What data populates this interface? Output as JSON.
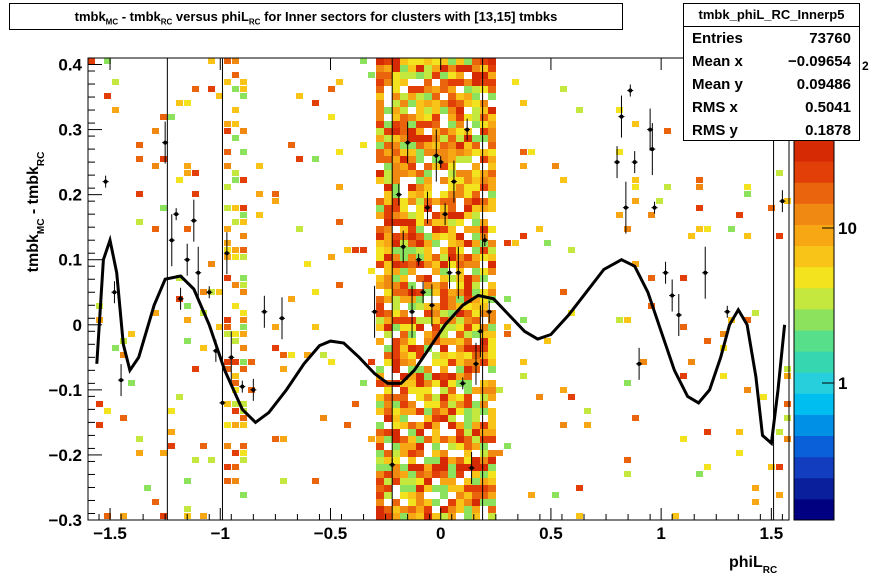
{
  "title": {
    "p1": "tmbk",
    "s1": "MC",
    "p2": " - tmbk",
    "s2": "RC",
    "p3": " versus phiL",
    "s3": "RC",
    "p4": " for Inner sectors for clusters with [13,15] tmbks"
  },
  "stats": {
    "name": "tmbk_phiL_RC_Innerp5",
    "rows": [
      {
        "key": "Entries",
        "value": "73760"
      },
      {
        "key": "Mean x",
        "value": "−0.09654"
      },
      {
        "key": "Mean y",
        "value": "0.09486"
      },
      {
        "key": "RMS x",
        "value": "0.5041"
      },
      {
        "key": "RMS y",
        "value": "0.1878"
      }
    ]
  },
  "axes": {
    "xlabel_main": "phiL",
    "xlabel_sub": "RC",
    "ylabel_a": "tmbk",
    "ylabel_a_sub": "MC",
    "ylabel_b": " - tmbk",
    "ylabel_b_sub": "RC",
    "xticks": [
      "−1.5",
      "−1",
      "−0.5",
      "0",
      "0.5",
      "1",
      "1.5"
    ],
    "yticks": [
      "−0.3",
      "−0.2",
      "−0.1",
      "0",
      "0.1",
      "0.2",
      "0.3",
      "0.4"
    ],
    "zticks": [
      "1",
      "10"
    ],
    "zcorner": "2"
  },
  "chart_data": {
    "type": "heatmap",
    "xlim": [
      -1.6,
      1.58
    ],
    "ylim": [
      -0.3,
      0.41
    ],
    "zscale": "log",
    "palette": [
      "#000080",
      "#0a1f9c",
      "#123dbe",
      "#0a60d8",
      "#0091e6",
      "#00bff0",
      "#27cfdc",
      "#36d6b0",
      "#57df8a",
      "#8ce25c",
      "#c4e83d",
      "#f2e31e",
      "#f9c418",
      "#f7a714",
      "#f08911",
      "#e9640c",
      "#e23e08",
      "#d62a05"
    ],
    "bands": [
      {
        "x0": -0.32,
        "x1": 0.25,
        "y0": -0.3,
        "y1": 0.41,
        "density": 0.85
      },
      {
        "x0": -1.0,
        "x1": -0.88,
        "y0": -0.26,
        "y1": 0.41,
        "density": 0.4
      }
    ],
    "profile_curve": [
      [
        -1.56,
        -0.06
      ],
      [
        -1.53,
        0.1
      ],
      [
        -1.5,
        0.13
      ],
      [
        -1.47,
        0.08
      ],
      [
        -1.44,
        -0.03
      ],
      [
        -1.41,
        -0.07
      ],
      [
        -1.37,
        -0.05
      ],
      [
        -1.3,
        0.03
      ],
      [
        -1.25,
        0.07
      ],
      [
        -1.18,
        0.075
      ],
      [
        -1.12,
        0.055
      ],
      [
        -1.05,
        0.0
      ],
      [
        -0.98,
        -0.07
      ],
      [
        -0.9,
        -0.13
      ],
      [
        -0.84,
        -0.15
      ],
      [
        -0.78,
        -0.135
      ],
      [
        -0.7,
        -0.1
      ],
      [
        -0.62,
        -0.06
      ],
      [
        -0.55,
        -0.032
      ],
      [
        -0.5,
        -0.025
      ],
      [
        -0.44,
        -0.028
      ],
      [
        -0.37,
        -0.05
      ],
      [
        -0.3,
        -0.075
      ],
      [
        -0.24,
        -0.09
      ],
      [
        -0.18,
        -0.09
      ],
      [
        -0.12,
        -0.07
      ],
      [
        -0.05,
        -0.035
      ],
      [
        0.02,
        0.0
      ],
      [
        0.1,
        0.03
      ],
      [
        0.17,
        0.045
      ],
      [
        0.24,
        0.04
      ],
      [
        0.31,
        0.015
      ],
      [
        0.38,
        -0.01
      ],
      [
        0.44,
        -0.022
      ],
      [
        0.5,
        -0.015
      ],
      [
        0.58,
        0.015
      ],
      [
        0.66,
        0.05
      ],
      [
        0.74,
        0.085
      ],
      [
        0.82,
        0.1
      ],
      [
        0.88,
        0.09
      ],
      [
        0.94,
        0.05
      ],
      [
        1.0,
        -0.01
      ],
      [
        1.06,
        -0.07
      ],
      [
        1.12,
        -0.11
      ],
      [
        1.17,
        -0.12
      ],
      [
        1.22,
        -0.1
      ],
      [
        1.27,
        -0.05
      ],
      [
        1.31,
        0.0
      ],
      [
        1.35,
        0.023
      ],
      [
        1.39,
        0.0
      ],
      [
        1.43,
        -0.08
      ],
      [
        1.46,
        -0.17
      ],
      [
        1.5,
        -0.182
      ],
      [
        1.53,
        -0.1
      ],
      [
        1.56,
        0.0
      ]
    ],
    "profile_points": [
      [
        -1.52,
        0.22
      ],
      [
        -1.48,
        0.05
      ],
      [
        -1.45,
        -0.085
      ],
      [
        -1.25,
        0.28
      ],
      [
        -1.22,
        0.13
      ],
      [
        -1.2,
        0.17
      ],
      [
        -1.18,
        0.04
      ],
      [
        -1.15,
        0.1
      ],
      [
        -1.12,
        0.16
      ],
      [
        -1.1,
        0.08
      ],
      [
        -1.05,
        0.05
      ],
      [
        -1.02,
        -0.04
      ],
      [
        -0.99,
        -0.12
      ],
      [
        -0.97,
        0.11
      ],
      [
        -0.95,
        -0.05
      ],
      [
        -0.9,
        -0.095
      ],
      [
        -0.85,
        -0.1
      ],
      [
        -0.8,
        0.02
      ],
      [
        -0.72,
        0.01
      ],
      [
        -0.3,
        0.02
      ],
      [
        -0.22,
        -0.215
      ],
      [
        -0.19,
        0.2
      ],
      [
        -0.17,
        0.12
      ],
      [
        -0.15,
        0.28
      ],
      [
        -0.13,
        0.02
      ],
      [
        -0.1,
        0.1
      ],
      [
        -0.08,
        0.05
      ],
      [
        -0.06,
        0.18
      ],
      [
        -0.04,
        0.03
      ],
      [
        -0.02,
        0.26
      ],
      [
        0.0,
        0.25
      ],
      [
        0.02,
        0.17
      ],
      [
        0.04,
        0.08
      ],
      [
        0.06,
        0.22
      ],
      [
        0.08,
        0.08
      ],
      [
        0.1,
        -0.09
      ],
      [
        0.12,
        0.3
      ],
      [
        0.14,
        -0.22
      ],
      [
        0.16,
        -0.06
      ],
      [
        0.18,
        -0.01
      ],
      [
        0.2,
        0.13
      ],
      [
        0.22,
        0.02
      ],
      [
        0.8,
        0.25
      ],
      [
        0.82,
        0.32
      ],
      [
        0.84,
        0.18
      ],
      [
        0.86,
        0.36
      ],
      [
        0.88,
        0.25
      ],
      [
        0.9,
        -0.06
      ],
      [
        0.95,
        0.3
      ],
      [
        0.96,
        0.27
      ],
      [
        0.97,
        0.18
      ],
      [
        1.02,
        0.08
      ],
      [
        1.05,
        0.045
      ],
      [
        1.08,
        0.015
      ],
      [
        1.2,
        0.08
      ],
      [
        1.3,
        0.02
      ],
      [
        1.55,
        0.19
      ]
    ]
  }
}
